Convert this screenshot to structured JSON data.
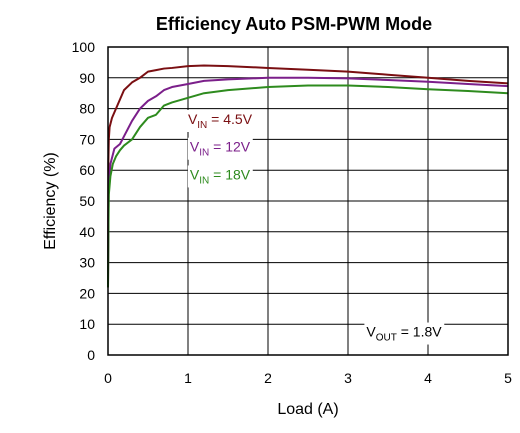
{
  "chart_data": {
    "type": "line",
    "title": "Efficiency Auto PSM-PWM Mode",
    "xlabel": "Load (A)",
    "ylabel": "Efficiency (%)",
    "xlim": [
      0,
      5
    ],
    "ylim": [
      0,
      100
    ],
    "x_ticks": [
      "0",
      "1",
      "2",
      "3",
      "4",
      "5"
    ],
    "y_ticks": [
      "0",
      "10",
      "20",
      "30",
      "40",
      "50",
      "60",
      "70",
      "80",
      "90",
      "100"
    ],
    "grid": true,
    "series": [
      {
        "name": "VIN = 4.5V",
        "color": "#7a0f12",
        "points": [
          [
            0.0,
            22
          ],
          [
            0.005,
            63
          ],
          [
            0.01,
            70
          ],
          [
            0.02,
            74
          ],
          [
            0.05,
            77
          ],
          [
            0.1,
            80
          ],
          [
            0.15,
            83
          ],
          [
            0.2,
            86
          ],
          [
            0.3,
            88.5
          ],
          [
            0.4,
            90
          ],
          [
            0.5,
            92
          ],
          [
            0.6,
            92.5
          ],
          [
            0.7,
            93
          ],
          [
            0.8,
            93.2
          ],
          [
            1.0,
            93.8
          ],
          [
            1.2,
            94
          ],
          [
            1.5,
            93.8
          ],
          [
            2.0,
            93.2
          ],
          [
            2.5,
            92.6
          ],
          [
            3.0,
            92
          ],
          [
            3.5,
            91
          ],
          [
            4.0,
            90
          ],
          [
            4.5,
            89
          ],
          [
            5.0,
            88.2
          ]
        ]
      },
      {
        "name": "VIN = 12V",
        "color": "#7b1f8a",
        "points": [
          [
            0.0,
            22
          ],
          [
            0.005,
            45
          ],
          [
            0.01,
            55
          ],
          [
            0.03,
            62
          ],
          [
            0.08,
            67
          ],
          [
            0.15,
            68.5
          ],
          [
            0.2,
            71
          ],
          [
            0.3,
            76
          ],
          [
            0.4,
            80
          ],
          [
            0.5,
            82.5
          ],
          [
            0.6,
            84
          ],
          [
            0.7,
            86
          ],
          [
            0.8,
            87
          ],
          [
            1.0,
            88
          ],
          [
            1.2,
            89
          ],
          [
            1.5,
            89.5
          ],
          [
            2.0,
            90
          ],
          [
            2.5,
            90
          ],
          [
            3.0,
            89.8
          ],
          [
            3.5,
            89.3
          ],
          [
            4.0,
            88.7
          ],
          [
            4.5,
            88
          ],
          [
            5.0,
            87.3
          ]
        ]
      },
      {
        "name": "VIN = 18V",
        "color": "#2e8b1e",
        "points": [
          [
            0.0,
            22
          ],
          [
            0.005,
            40
          ],
          [
            0.01,
            52
          ],
          [
            0.03,
            58
          ],
          [
            0.06,
            62
          ],
          [
            0.1,
            64.5
          ],
          [
            0.15,
            66.5
          ],
          [
            0.2,
            68
          ],
          [
            0.3,
            70
          ],
          [
            0.4,
            74
          ],
          [
            0.5,
            77
          ],
          [
            0.6,
            78
          ],
          [
            0.7,
            81
          ],
          [
            0.8,
            82
          ],
          [
            1.0,
            83.5
          ],
          [
            1.2,
            85
          ],
          [
            1.5,
            86
          ],
          [
            2.0,
            87
          ],
          [
            2.5,
            87.5
          ],
          [
            3.0,
            87.5
          ],
          [
            3.5,
            87
          ],
          [
            4.0,
            86.3
          ],
          [
            4.5,
            85.7
          ],
          [
            5.0,
            85
          ]
        ]
      }
    ],
    "annotations": [
      {
        "main": "V",
        "sub": "IN",
        "rest": " = 4.5V",
        "color": "#7a0f12",
        "at": [
          1.4,
          75
        ]
      },
      {
        "main": "V",
        "sub": "IN",
        "rest": " = 12V",
        "color": "#7b1f8a",
        "at": [
          1.4,
          66
        ]
      },
      {
        "main": "V",
        "sub": "IN",
        "rest": " = 18V",
        "color": "#2e8b1e",
        "at": [
          1.4,
          57
        ]
      },
      {
        "main": "V",
        "sub": "OUT",
        "rest": " = 1.8V",
        "color": "#000000",
        "at": [
          3.7,
          6
        ]
      }
    ]
  }
}
